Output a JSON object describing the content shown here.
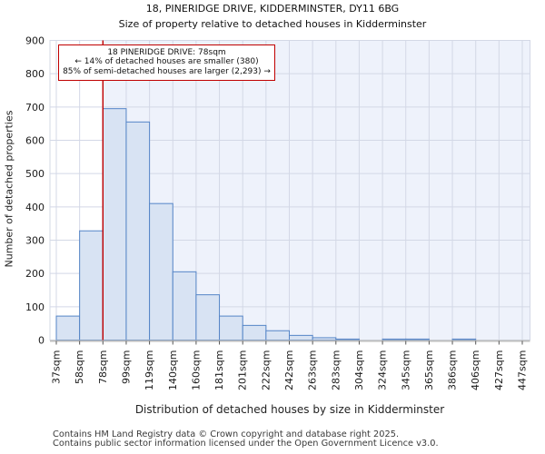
{
  "chart_data": {
    "type": "bar",
    "title": "18, PINERIDGE DRIVE, KIDDERMINSTER, DY11 6BG",
    "subtitle": "Size of property relative to detached houses in Kidderminster",
    "xlabel": "Distribution of detached houses by size in Kidderminster",
    "ylabel": "Number of detached properties",
    "bin_edges_sqm": [
      37,
      58,
      78,
      99,
      119,
      140,
      160,
      181,
      201,
      222,
      242,
      263,
      283,
      304,
      324,
      345,
      365,
      386,
      406,
      427,
      447
    ],
    "x_tick_labels": [
      "37sqm",
      "58sqm",
      "78sqm",
      "99sqm",
      "119sqm",
      "140sqm",
      "160sqm",
      "181sqm",
      "201sqm",
      "222sqm",
      "242sqm",
      "263sqm",
      "283sqm",
      "304sqm",
      "324sqm",
      "345sqm",
      "365sqm",
      "386sqm",
      "406sqm",
      "427sqm",
      "447sqm"
    ],
    "values": [
      72,
      328,
      695,
      655,
      410,
      205,
      136,
      72,
      44,
      28,
      14,
      7,
      3,
      0,
      3,
      3,
      0,
      3,
      0,
      0
    ],
    "y_ticks": [
      0,
      100,
      200,
      300,
      400,
      500,
      600,
      700,
      800,
      900
    ],
    "ylim": [
      0,
      900
    ],
    "grid": true,
    "legend": null,
    "marker_value_sqm": 78,
    "annotation": {
      "line1": "18 PINERIDGE DRIVE: 78sqm",
      "line2": "← 14% of detached houses are smaller (380)",
      "line3": "85% of semi-detached houses are larger (2,293) →"
    },
    "colors": {
      "bar_fill": "#d8e3f3",
      "bar_edge": "#5585c7",
      "marker_line": "#c00000",
      "annotation_border": "#c00000",
      "shaded_region": "#eef2fb",
      "gridline": "#d3d8e6",
      "axis_line": "#bfbfbf"
    }
  },
  "footer": {
    "line1": "Contains HM Land Registry data © Crown copyright and database right 2025.",
    "line2": "Contains public sector information licensed under the Open Government Licence v3.0."
  }
}
